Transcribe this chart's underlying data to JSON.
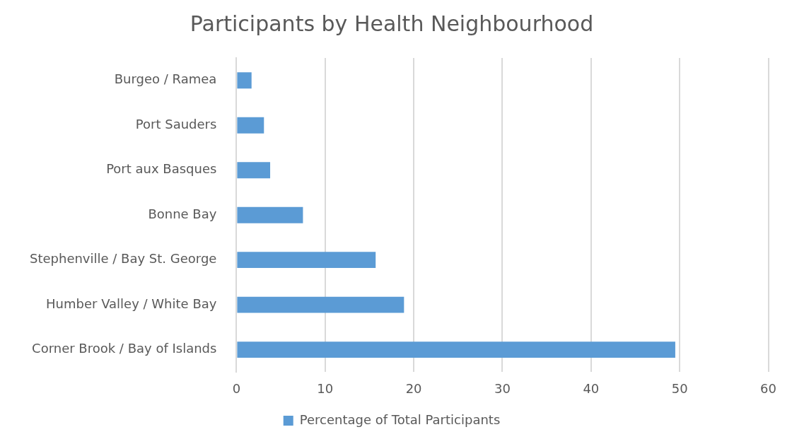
{
  "chart_data": {
    "type": "bar",
    "orientation": "horizontal",
    "title": "Participants by Health Neighbourhood",
    "categories": [
      "Burgeo / Ramea",
      "Port Sauders",
      "Port aux Basques",
      "Bonne Bay",
      "Stephenville / Bay St. George",
      "Humber Valley / White Bay",
      "Corner Brook / Bay of Islands"
    ],
    "series": [
      {
        "name": "Percentage of Total Participants",
        "color": "#5b9bd5",
        "values": [
          1.7,
          3.1,
          3.8,
          7.5,
          15.7,
          18.9,
          49.5
        ]
      }
    ],
    "xlim": [
      0,
      60
    ],
    "xticks": [
      0,
      10,
      20,
      30,
      40,
      50,
      60
    ],
    "grid": "x",
    "legend": "bottom"
  }
}
